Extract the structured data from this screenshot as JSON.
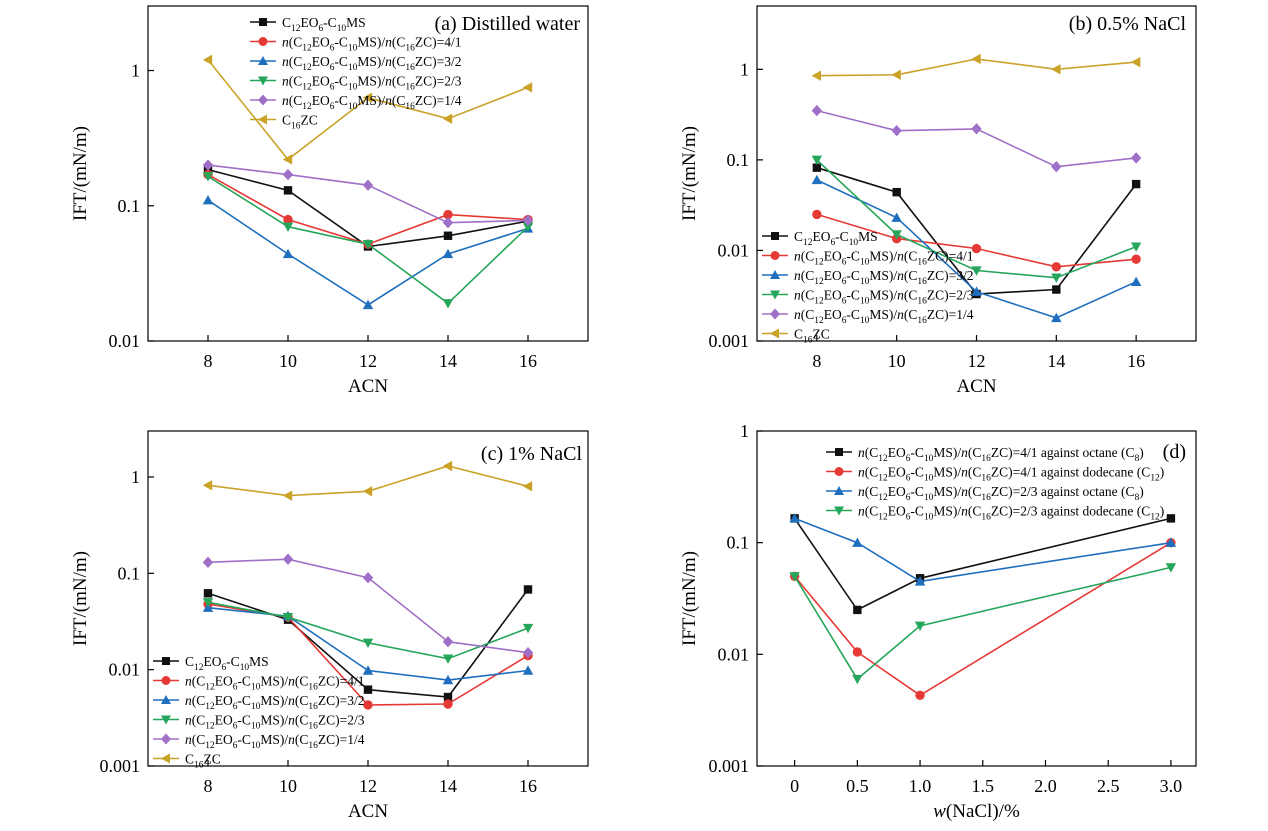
{
  "colors": {
    "C12EO6-C10MS": "#111111",
    "4/1": "#e53935",
    "3/2": "#1f6fbf",
    "2/3": "#26a65b",
    "1/4": "#a070c8",
    "C16ZC": "#c9a227"
  },
  "chart_data": [
    {
      "type": "line",
      "panel_label": "(a) Distilled water",
      "xlabel": "ACN",
      "ylabel": "IFT/(mN/m)",
      "yscale": "log",
      "ylim": [
        0.01,
        3
      ],
      "xlim": [
        6.5,
        17.5
      ],
      "x_ticks": [
        8,
        10,
        12,
        14,
        16
      ],
      "y_ticks": [
        0.01,
        0.1,
        1
      ],
      "y_tick_labels": [
        "0.01",
        "0.1",
        "1"
      ],
      "x": [
        8,
        10,
        12,
        14,
        16
      ],
      "legend_position": "top-right",
      "series": [
        {
          "name": "C12EO6-C10MS",
          "color_key": "C12EO6-C10MS",
          "marker": "square",
          "values": [
            0.185,
            0.13,
            0.05,
            0.06,
            0.077
          ]
        },
        {
          "name": "n(C12EO6-C10MS)/n(C16ZC)=4/1",
          "color_key": "4/1",
          "marker": "circle",
          "values": [
            0.17,
            0.079,
            0.052,
            0.086,
            0.079
          ]
        },
        {
          "name": "n(C12EO6-C10MS)/n(C16ZC)=3/2",
          "color_key": "3/2",
          "marker": "triangle-up",
          "values": [
            0.11,
            0.044,
            0.0185,
            0.044,
            0.068
          ]
        },
        {
          "name": "n(C12EO6-C10MS)/n(C16ZC)=2/3",
          "color_key": "2/3",
          "marker": "triangle-down",
          "values": [
            0.165,
            0.07,
            0.052,
            0.019,
            0.07
          ]
        },
        {
          "name": "n(C12EO6-C10MS)/n(C16ZC)=1/4",
          "color_key": "1/4",
          "marker": "diamond",
          "values": [
            0.2,
            0.17,
            0.142,
            0.075,
            0.078
          ]
        },
        {
          "name": "C16ZC",
          "color_key": "C16ZC",
          "marker": "triangle-left",
          "values": [
            1.2,
            0.22,
            0.63,
            0.44,
            0.75
          ]
        }
      ]
    },
    {
      "type": "line",
      "panel_label": "(b) 0.5% NaCl",
      "xlabel": "ACN",
      "ylabel": "IFT/(mN/m)",
      "yscale": "log",
      "ylim": [
        0.001,
        5
      ],
      "xlim": [
        6.5,
        17.5
      ],
      "x_ticks": [
        8,
        10,
        12,
        14,
        16
      ],
      "y_ticks": [
        0.001,
        0.01,
        0.1,
        1
      ],
      "y_tick_labels": [
        "0.001",
        "0.01",
        "0.1",
        "1"
      ],
      "x": [
        8,
        10,
        12,
        14,
        16
      ],
      "legend_position": "bottom-left",
      "series": [
        {
          "name": "C12EO6-C10MS",
          "color_key": "C12EO6-C10MS",
          "marker": "square",
          "values": [
            0.082,
            0.044,
            0.0033,
            0.0037,
            0.054
          ]
        },
        {
          "name": "n(C12EO6-C10MS)/n(C16ZC)=4/1",
          "color_key": "4/1",
          "marker": "circle",
          "values": [
            0.025,
            0.0135,
            0.0105,
            0.0066,
            0.008
          ]
        },
        {
          "name": "n(C12EO6-C10MS)/n(C16ZC)=3/2",
          "color_key": "3/2",
          "marker": "triangle-up",
          "values": [
            0.06,
            0.023,
            0.0035,
            0.0018,
            0.0045
          ]
        },
        {
          "name": "n(C12EO6-C10MS)/n(C16ZC)=2/3",
          "color_key": "2/3",
          "marker": "triangle-down",
          "values": [
            0.1,
            0.015,
            0.006,
            0.005,
            0.011
          ]
        },
        {
          "name": "n(C12EO6-C10MS)/n(C16ZC)=1/4",
          "color_key": "1/4",
          "marker": "diamond",
          "values": [
            0.35,
            0.21,
            0.22,
            0.084,
            0.105
          ]
        },
        {
          "name": "C16ZC",
          "color_key": "C16ZC",
          "marker": "triangle-left",
          "values": [
            0.85,
            0.87,
            1.3,
            1.0,
            1.2
          ]
        }
      ]
    },
    {
      "type": "line",
      "panel_label": "(c) 1% NaCl",
      "xlabel": "ACN",
      "ylabel": "IFT/(mN/m)",
      "yscale": "log",
      "ylim": [
        0.001,
        3
      ],
      "xlim": [
        6.5,
        17.5
      ],
      "x_ticks": [
        8,
        10,
        12,
        14,
        16
      ],
      "y_ticks": [
        0.001,
        0.01,
        0.1,
        1
      ],
      "y_tick_labels": [
        "0.001",
        "0.01",
        "0.1",
        "1"
      ],
      "x": [
        8,
        10,
        12,
        14,
        16
      ],
      "legend_position": "bottom-left",
      "series": [
        {
          "name": "C12EO6-C10MS",
          "color_key": "C12EO6-C10MS",
          "marker": "square",
          "values": [
            0.062,
            0.033,
            0.0062,
            0.0052,
            0.068
          ]
        },
        {
          "name": "n(C12EO6-C10MS)/n(C16ZC)=4/1",
          "color_key": "4/1",
          "marker": "circle",
          "values": [
            0.048,
            0.035,
            0.0043,
            0.0044,
            0.014
          ]
        },
        {
          "name": "n(C12EO6-C10MS)/n(C16ZC)=3/2",
          "color_key": "3/2",
          "marker": "triangle-up",
          "values": [
            0.044,
            0.036,
            0.0098,
            0.0078,
            0.0098
          ]
        },
        {
          "name": "n(C12EO6-C10MS)/n(C16ZC)=2/3",
          "color_key": "2/3",
          "marker": "triangle-down",
          "values": [
            0.05,
            0.035,
            0.019,
            0.013,
            0.027
          ]
        },
        {
          "name": "n(C12EO6-C10MS)/n(C16ZC)=1/4",
          "color_key": "1/4",
          "marker": "diamond",
          "values": [
            0.13,
            0.14,
            0.09,
            0.0195,
            0.015
          ]
        },
        {
          "name": "C16ZC",
          "color_key": "C16ZC",
          "marker": "triangle-left",
          "values": [
            0.82,
            0.64,
            0.71,
            1.3,
            0.8
          ]
        }
      ]
    },
    {
      "type": "line",
      "panel_label": "(d)",
      "xlabel": "w(NaCl)/%",
      "ylabel": "IFT/(mN/m)",
      "yscale": "log",
      "ylim": [
        0.001,
        1
      ],
      "xlim": [
        -0.3,
        3.2
      ],
      "x_ticks": [
        0,
        0.5,
        1.0,
        1.5,
        2.0,
        2.5,
        3.0
      ],
      "x_tick_labels": [
        "0",
        "0.5",
        "1.0",
        "1.5",
        "2.0",
        "2.5",
        "3.0"
      ],
      "y_ticks": [
        0.001,
        0.01,
        0.1,
        1
      ],
      "y_tick_labels": [
        "0.001",
        "0.01",
        "0.1",
        "1"
      ],
      "x": [
        0,
        0.5,
        1.0,
        3.0
      ],
      "legend_position": "top-right",
      "series": [
        {
          "name": "n(C12EO6-C10MS)/n(C16ZC)=4/1 against octane (C8)",
          "color_key": "C12EO6-C10MS",
          "marker": "square",
          "values": [
            0.165,
            0.025,
            0.048,
            0.165
          ]
        },
        {
          "name": "n(C12EO6-C10MS)/n(C16ZC)=4/1 against dodecane (C12)",
          "color_key": "4/1",
          "marker": "circle",
          "values": [
            0.05,
            0.0105,
            0.0043,
            0.1
          ]
        },
        {
          "name": "n(C12EO6-C10MS)/n(C16ZC)=2/3 against octane (C8)",
          "color_key": "3/2",
          "marker": "triangle-up",
          "values": [
            0.165,
            0.1,
            0.045,
            0.1
          ]
        },
        {
          "name": "n(C12EO6-C10MS)/n(C16ZC)=2/3 against dodecane (C12)",
          "color_key": "2/3",
          "marker": "triangle-down",
          "values": [
            0.05,
            0.006,
            0.018,
            0.06
          ]
        }
      ]
    }
  ]
}
